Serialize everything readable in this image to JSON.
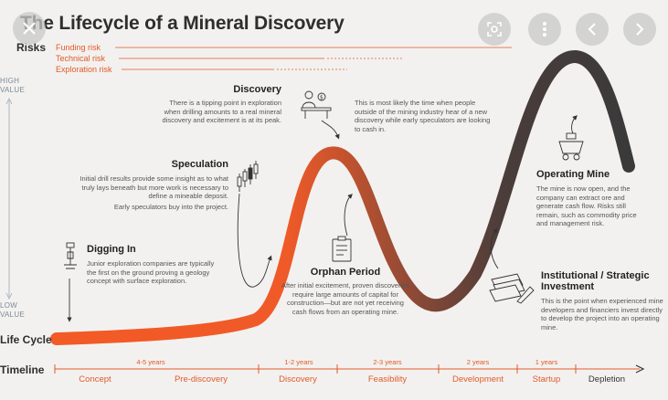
{
  "title": "The Lifecycle of a Mineral Discovery",
  "risks": {
    "label": "Risks",
    "items": [
      "Funding risk",
      "Technical risk",
      "Exploration risk"
    ]
  },
  "value_axis": {
    "high": "HIGH\nVALUE",
    "low": "LOW\nVALUE"
  },
  "life_cycle_label": "Life Cycle",
  "timeline_label": "Timeline",
  "phases": {
    "digging_in": {
      "heading": "Digging In",
      "body": "Junior exploration companies are typically the first on the ground proving a geology concept with surface exploration."
    },
    "speculation": {
      "heading": "Speculation",
      "body": "Initial drill results provide some insight as to what truly lays beneath but more work is necessary to define a mineable deposit.",
      "body2": "Early speculators buy into the project."
    },
    "discovery": {
      "heading": "Discovery",
      "body": "There is a tipping point in exploration when drilling amounts to a real mineral discovery and excitement is at its peak."
    },
    "cash_in": {
      "body": "This is most likely the time when people outside of the mining industry hear of a new discovery while early speculators are looking to cash in."
    },
    "orphan_period": {
      "heading": "Orphan Period",
      "body": "After initial excitement, proven discoveries require large amounts of capital for construction—but are not yet receiving cash flows from an operating mine."
    },
    "operating_mine": {
      "heading": "Operating Mine",
      "body": "The mine is now open, and the company can extract ore and generate cash flow. Risks still remain, such as commodity price and management risk."
    },
    "institutional": {
      "heading": "Institutional / Strategic Investment",
      "body": "This is the point when experienced mine developers and financiers invest directly to develop the project into an operating mine."
    }
  },
  "timeline": {
    "durations": [
      "4-5 years",
      "1-2 years",
      "2-3 years",
      "2 years",
      "1 years"
    ],
    "stages": [
      "Concept",
      "Pre-discovery",
      "Discovery",
      "Feasibility",
      "Development",
      "Startup",
      "Depletion"
    ]
  },
  "colors": {
    "accent": "#e05a2a",
    "curve_start": "#f0562a",
    "curve_end": "#3a3a3a"
  },
  "viewer_controls": {
    "close": "close-icon",
    "lens": "lens-icon",
    "more": "more-icon",
    "prev": "chevron-left-icon",
    "next": "chevron-right-icon"
  }
}
